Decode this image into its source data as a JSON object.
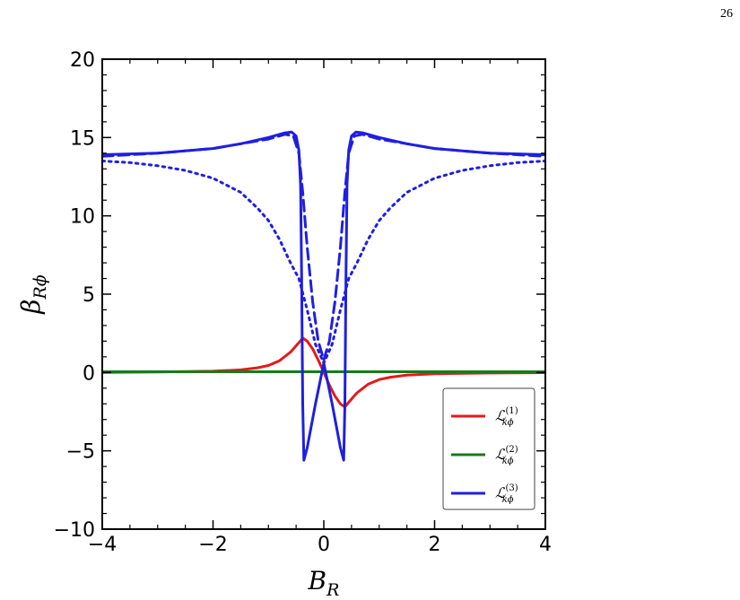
{
  "page_number": "26",
  "chart_data": {
    "type": "line",
    "xlabel": "B_R",
    "ylabel": "β_Rϕ",
    "xlim": [
      -4,
      4
    ],
    "ylim": [
      -10,
      20
    ],
    "x_ticks": [
      -4,
      -2,
      0,
      2,
      4
    ],
    "y_ticks": [
      -10,
      -5,
      0,
      5,
      10,
      15,
      20
    ],
    "x_tick_labels": [
      "−4",
      "−2",
      "0",
      "2",
      "4"
    ],
    "y_tick_labels": [
      "−10",
      "−5",
      "0",
      "5",
      "10",
      "15",
      "20"
    ],
    "grid": false,
    "legend_position": "bottom-right",
    "series": [
      {
        "name": "ℒ_kϕ^(1)",
        "color": "#e41a1c",
        "style": "solid",
        "points": [
          [
            -4,
            0.01
          ],
          [
            -3,
            0.03
          ],
          [
            -2,
            0.08
          ],
          [
            -1.5,
            0.17
          ],
          [
            -1.2,
            0.3
          ],
          [
            -1.0,
            0.45
          ],
          [
            -0.8,
            0.75
          ],
          [
            -0.6,
            1.3
          ],
          [
            -0.45,
            1.9
          ],
          [
            -0.38,
            2.2
          ],
          [
            -0.3,
            2.0
          ],
          [
            -0.2,
            1.5
          ],
          [
            -0.1,
            0.8
          ],
          [
            0,
            0
          ],
          [
            0.1,
            -0.8
          ],
          [
            0.2,
            -1.5
          ],
          [
            0.3,
            -2.0
          ],
          [
            0.38,
            -2.2
          ],
          [
            0.45,
            -1.9
          ],
          [
            0.6,
            -1.3
          ],
          [
            0.8,
            -0.75
          ],
          [
            1.0,
            -0.45
          ],
          [
            1.2,
            -0.3
          ],
          [
            1.5,
            -0.17
          ],
          [
            2,
            -0.08
          ],
          [
            3,
            -0.03
          ],
          [
            4,
            -0.01
          ]
        ]
      },
      {
        "name": "ℒ_kϕ^(2)",
        "color": "#1a7a1a",
        "style": "solid",
        "points": [
          [
            -4,
            0.05
          ],
          [
            4,
            0.05
          ]
        ]
      },
      {
        "name": "ℒ_kϕ^(3)",
        "color": "#1f1fe0",
        "style": "solid",
        "points": [
          [
            -4,
            13.9
          ],
          [
            -3,
            14.0
          ],
          [
            -2,
            14.3
          ],
          [
            -1.5,
            14.6
          ],
          [
            -1.0,
            15.0
          ],
          [
            -0.7,
            15.3
          ],
          [
            -0.58,
            15.35
          ],
          [
            -0.5,
            15.1
          ],
          [
            -0.45,
            14.2
          ],
          [
            -0.42,
            12.0
          ],
          [
            -0.4,
            6.0
          ],
          [
            -0.38,
            -2.0
          ],
          [
            -0.36,
            -5.6
          ],
          [
            -0.3,
            -4.8
          ],
          [
            -0.15,
            -2.0
          ],
          [
            0,
            0.6
          ],
          [
            0.15,
            -2.0
          ],
          [
            0.3,
            -4.8
          ],
          [
            0.36,
            -5.6
          ],
          [
            0.38,
            -2.0
          ],
          [
            0.4,
            6.0
          ],
          [
            0.42,
            12.0
          ],
          [
            0.45,
            14.2
          ],
          [
            0.5,
            15.1
          ],
          [
            0.58,
            15.35
          ],
          [
            0.7,
            15.3
          ],
          [
            1.0,
            15.0
          ],
          [
            1.5,
            14.6
          ],
          [
            2,
            14.3
          ],
          [
            3,
            14.0
          ],
          [
            4,
            13.9
          ]
        ]
      },
      {
        "color": "#1f1fe0",
        "style": "dashed",
        "points": [
          [
            -4,
            13.8
          ],
          [
            -3,
            14.0
          ],
          [
            -2,
            14.3
          ],
          [
            -1.5,
            14.6
          ],
          [
            -1.0,
            14.9
          ],
          [
            -0.7,
            15.2
          ],
          [
            -0.55,
            15.1
          ],
          [
            -0.45,
            14.0
          ],
          [
            -0.38,
            11.5
          ],
          [
            -0.3,
            8.0
          ],
          [
            -0.2,
            4.5
          ],
          [
            -0.1,
            2.0
          ],
          [
            0,
            0.8
          ],
          [
            0.1,
            2.0
          ],
          [
            0.2,
            4.5
          ],
          [
            0.3,
            8.0
          ],
          [
            0.38,
            11.5
          ],
          [
            0.45,
            14.0
          ],
          [
            0.55,
            15.1
          ],
          [
            0.7,
            15.2
          ],
          [
            1.0,
            14.9
          ],
          [
            1.5,
            14.6
          ],
          [
            2,
            14.3
          ],
          [
            3,
            14.0
          ],
          [
            4,
            13.8
          ]
        ]
      },
      {
        "color": "#1f1fe0",
        "style": "dotted",
        "points": [
          [
            -4,
            13.5
          ],
          [
            -3.5,
            13.4
          ],
          [
            -3,
            13.2
          ],
          [
            -2.5,
            12.9
          ],
          [
            -2,
            12.4
          ],
          [
            -1.5,
            11.5
          ],
          [
            -1.2,
            10.5
          ],
          [
            -1.0,
            9.7
          ],
          [
            -0.8,
            8.5
          ],
          [
            -0.6,
            7.0
          ],
          [
            -0.45,
            6.0
          ],
          [
            -0.3,
            4.0
          ],
          [
            -0.15,
            1.8
          ],
          [
            0,
            0.6
          ],
          [
            0.15,
            1.8
          ],
          [
            0.3,
            4.0
          ],
          [
            0.45,
            6.0
          ],
          [
            0.6,
            7.0
          ],
          [
            0.8,
            8.5
          ],
          [
            1.0,
            9.7
          ],
          [
            1.2,
            10.5
          ],
          [
            1.5,
            11.5
          ],
          [
            2,
            12.4
          ],
          [
            2.5,
            12.9
          ],
          [
            3,
            13.2
          ],
          [
            3.5,
            13.4
          ],
          [
            4,
            13.5
          ]
        ]
      }
    ]
  }
}
